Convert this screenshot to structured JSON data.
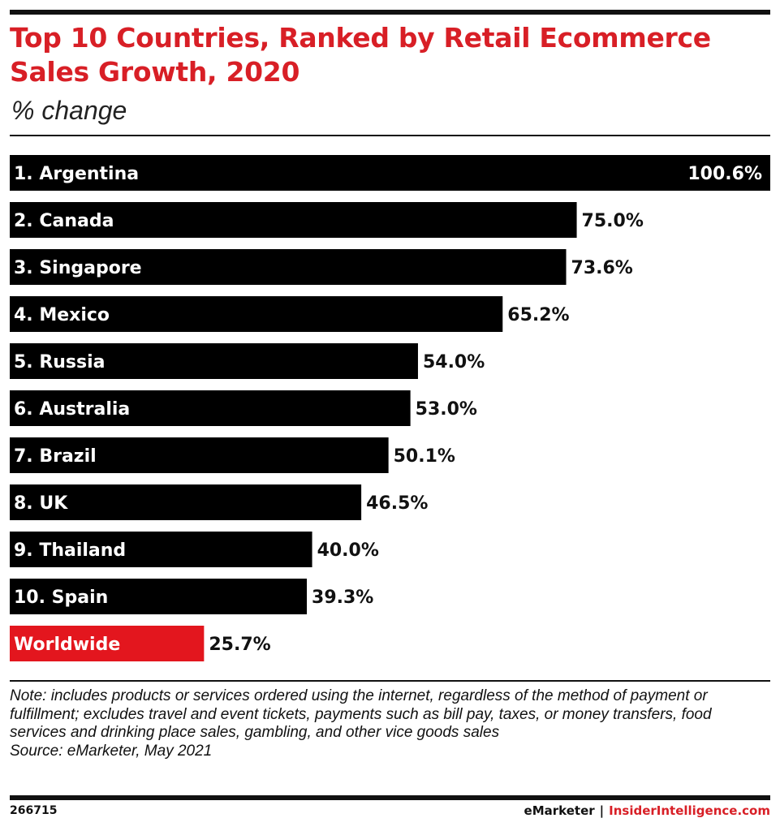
{
  "header": {
    "title": "Top 10 Countries, Ranked by Retail Ecommerce Sales Growth, 2020",
    "subtitle": "% change"
  },
  "chart_data": {
    "type": "bar",
    "orientation": "horizontal",
    "title": "Top 10 Countries, Ranked by Retail Ecommerce Sales Growth, 2020",
    "subtitle": "% change",
    "categories": [
      "1. Argentina",
      "2. Canada",
      "3. Singapore",
      "4. Mexico",
      "5. Russia",
      "6. Australia",
      "7. Brazil",
      "8. UK",
      "9. Thailand",
      "10. Spain",
      "Worldwide"
    ],
    "values": [
      100.6,
      75.0,
      73.6,
      65.2,
      54.0,
      53.0,
      50.1,
      46.5,
      40.0,
      39.3,
      25.7
    ],
    "value_labels": [
      "100.6%",
      "75.0%",
      "73.6%",
      "65.2%",
      "54.0%",
      "53.0%",
      "50.1%",
      "46.5%",
      "40.0%",
      "39.3%",
      "25.7%"
    ],
    "highlight_category": "Worldwide",
    "unit": "%",
    "xlim": [
      0,
      100.6
    ],
    "colors": {
      "bar": "#000000",
      "highlight": "#e3161e",
      "label_on_bar": "#ffffff",
      "value_label": "#111111"
    },
    "grid": false,
    "legend": "none"
  },
  "footer": {
    "note": "Note: includes products or services ordered using the internet, regardless of the method of payment or fulfillment; excludes travel and event tickets, payments such as bill pay, taxes, or money transfers, food services and drinking place sales, gambling, and other vice goods sales",
    "source": "Source: eMarketer, May 2021",
    "chart_id": "266715",
    "brand": "eMarketer",
    "separator": "|",
    "site": "InsiderIntelligence.com"
  }
}
